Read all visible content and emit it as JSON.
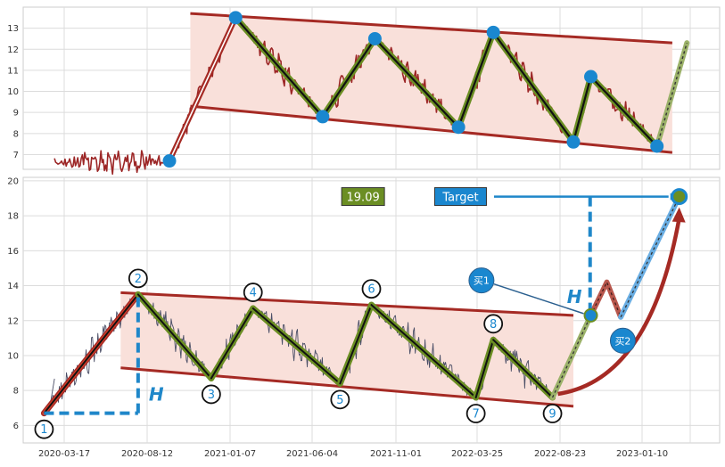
{
  "chart_data": [
    {
      "type": "line",
      "panel": "top",
      "ylim": [
        6.3,
        14.0
      ],
      "yticks": [
        7,
        8,
        9,
        10,
        11,
        12,
        13
      ],
      "grid": true,
      "channel": {
        "upper": {
          "start": 13.7,
          "end": 12.3
        },
        "lower": {
          "start": 9.3,
          "end": 7.1
        }
      },
      "pivots": [
        {
          "t": 0.21,
          "v": 6.7
        },
        {
          "t": 0.305,
          "v": 13.5
        },
        {
          "t": 0.43,
          "v": 8.8
        },
        {
          "t": 0.505,
          "v": 12.5
        },
        {
          "t": 0.625,
          "v": 8.3
        },
        {
          "t": 0.675,
          "v": 12.8
        },
        {
          "t": 0.79,
          "v": 7.6
        },
        {
          "t": 0.815,
          "v": 10.7
        },
        {
          "t": 0.91,
          "v": 7.4
        }
      ],
      "projection": {
        "v": 12.3
      }
    },
    {
      "type": "line",
      "panel": "bottom",
      "ylim": [
        5.0,
        20.2
      ],
      "yticks": [
        6,
        8,
        10,
        12,
        14,
        16,
        18,
        20
      ],
      "x_tick_labels": [
        "2020-03-17",
        "2020-08-12",
        "2021-01-07",
        "2021-06-04",
        "2021-11-01",
        "2022-03-25",
        "2022-08-23",
        "2023-01-10"
      ],
      "grid": true,
      "channel": {
        "upper": {
          "start": 13.6,
          "end": 12.3
        },
        "lower": {
          "start": 9.3,
          "end": 7.1
        }
      },
      "pivots": [
        {
          "label": "1",
          "t": 0.03,
          "v": 6.7
        },
        {
          "label": "2",
          "t": 0.165,
          "v": 13.5
        },
        {
          "label": "3",
          "t": 0.27,
          "v": 8.7
        },
        {
          "label": "4",
          "t": 0.33,
          "v": 12.7
        },
        {
          "label": "5",
          "t": 0.455,
          "v": 8.4
        },
        {
          "label": "6",
          "t": 0.5,
          "v": 12.9
        },
        {
          "label": "7",
          "t": 0.65,
          "v": 7.6
        },
        {
          "label": "8",
          "t": 0.675,
          "v": 10.9
        },
        {
          "label": "9",
          "t": 0.76,
          "v": 7.6
        }
      ],
      "buy1": {
        "v": 12.3
      },
      "buy2": {
        "v": 12.2
      },
      "target": {
        "v": 19.1
      },
      "height_marker": "H",
      "annotations": {
        "value_box": "19.09",
        "target_box": "Target",
        "buy1_label": "买1",
        "buy2_label": "买2"
      }
    }
  ],
  "colors": {
    "price": "#9c2626",
    "price_bottom": "#4a4e66",
    "channel_line": "#a52a24",
    "channel_fill": "#f9e0da",
    "pivot_dot": "#1a87cf",
    "zigzag_outer": "#6b8e23",
    "zigzag_inner": "#111111",
    "dash_blue": "#1f87c9",
    "value_box": "#6b8e23",
    "target_box": "#1a87cf",
    "projection": "#9cb26a",
    "buy2_line": "#6aaee3"
  }
}
